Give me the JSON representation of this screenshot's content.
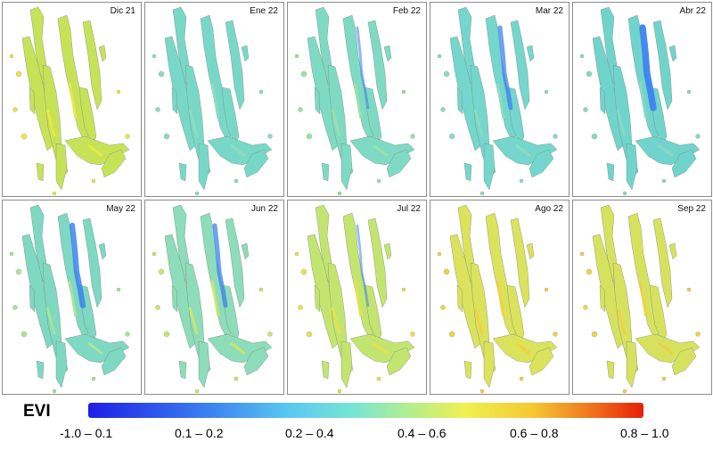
{
  "panels": [
    {
      "label": "Dic 21",
      "base": "#c8e258",
      "accent": "#e8e845",
      "blue_level": 0
    },
    {
      "label": "Ene 22",
      "base": "#78d8c8",
      "accent": "#8cdcc0",
      "blue_level": 0
    },
    {
      "label": "Feb 22",
      "base": "#7fdac4",
      "accent": "#9be0a8",
      "blue_level": 0.15
    },
    {
      "label": "Mar 22",
      "base": "#74d6cc",
      "accent": "#8cdcc0",
      "blue_level": 0.5
    },
    {
      "label": "Abr 22",
      "base": "#70d4cc",
      "accent": "#8ad8c4",
      "blue_level": 0.9
    },
    {
      "label": "May 22",
      "base": "#7ed8c2",
      "accent": "#a8e498",
      "blue_level": 0.7
    },
    {
      "label": "Jun 22",
      "base": "#8ddcba",
      "accent": "#c8e66c",
      "blue_level": 0.5
    },
    {
      "label": "Jul 22",
      "base": "#c4e470",
      "accent": "#e6e24a",
      "blue_level": 0.1
    },
    {
      "label": "Ago 22",
      "base": "#dbe25c",
      "accent": "#f0d240",
      "blue_level": 0
    },
    {
      "label": "Sep 22",
      "base": "#d6e25e",
      "accent": "#f0d048",
      "blue_level": 0
    }
  ],
  "legend": {
    "title": "EVI",
    "classes": [
      "-1.0 – 0.1",
      "0.1 – 0.2",
      "0.2 – 0.4",
      "0.4 – 0.6",
      "0.6 – 0.8",
      "0.8 – 1.0"
    ],
    "colors": [
      "#1e1ee6",
      "#3c82f0",
      "#78e6d2",
      "#f0f050",
      "#f5c832",
      "#e61e0a"
    ]
  }
}
